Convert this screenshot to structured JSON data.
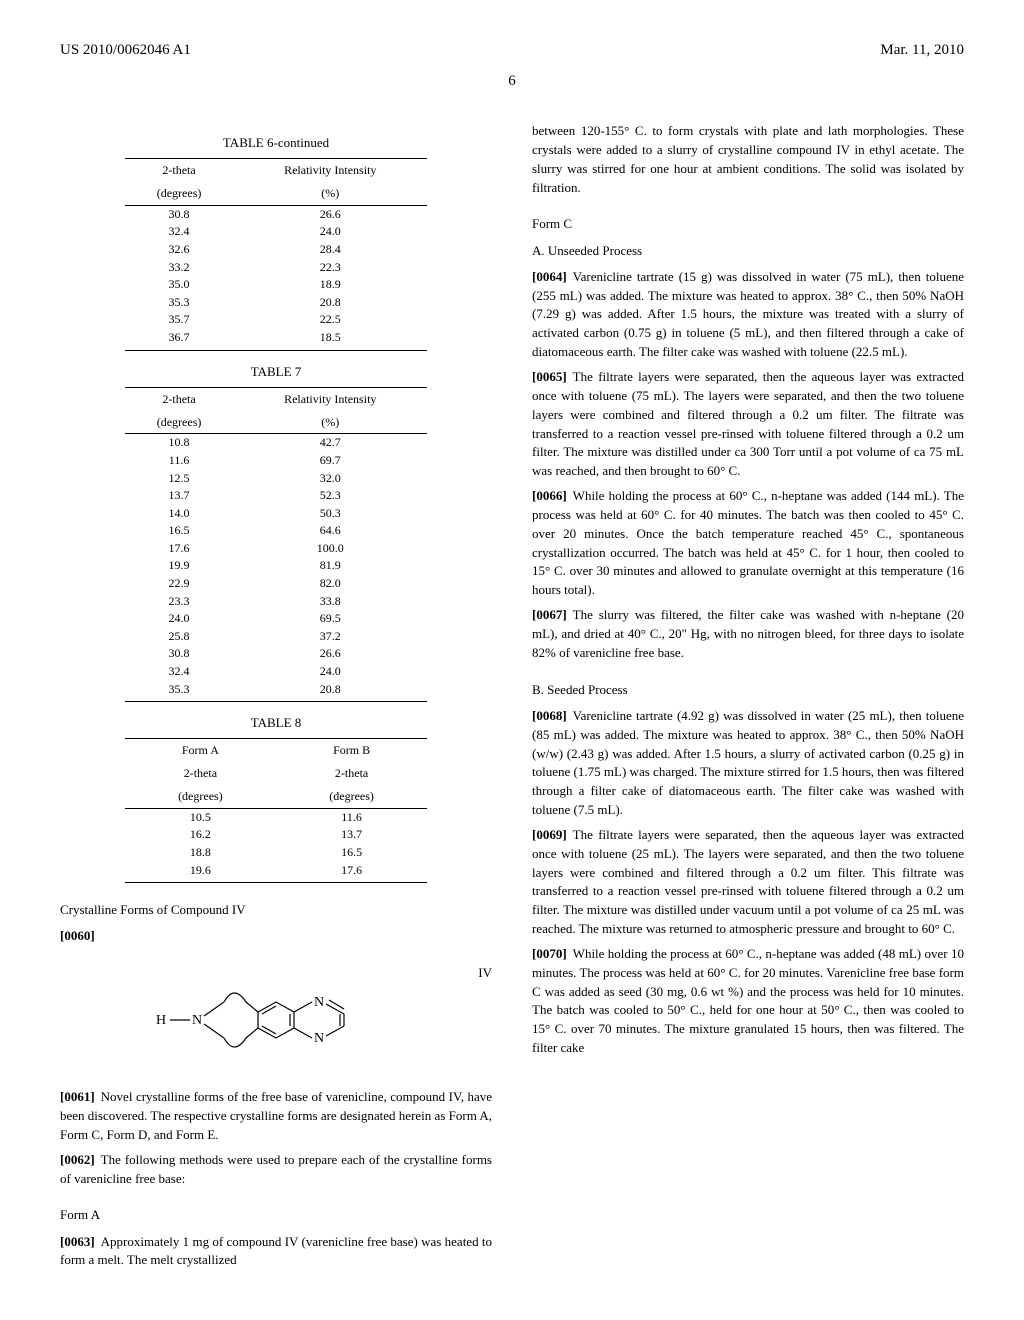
{
  "header": {
    "pub_number": "US 2010/0062046 A1",
    "pub_date": "Mar. 11, 2010",
    "page_number": "6"
  },
  "table6": {
    "title": "TABLE 6-continued",
    "col1_head1": "2-theta",
    "col1_head2": "(degrees)",
    "col2_head1": "Relativity Intensity",
    "col2_head2": "(%)",
    "rows": [
      [
        "30.8",
        "26.6"
      ],
      [
        "32.4",
        "24.0"
      ],
      [
        "32.6",
        "28.4"
      ],
      [
        "33.2",
        "22.3"
      ],
      [
        "35.0",
        "18.9"
      ],
      [
        "35.3",
        "20.8"
      ],
      [
        "35.7",
        "22.5"
      ],
      [
        "36.7",
        "18.5"
      ]
    ]
  },
  "table7": {
    "title": "TABLE 7",
    "col1_head1": "2-theta",
    "col1_head2": "(degrees)",
    "col2_head1": "Relativity Intensity",
    "col2_head2": "(%)",
    "rows": [
      [
        "10.8",
        "42.7"
      ],
      [
        "11.6",
        "69.7"
      ],
      [
        "12.5",
        "32.0"
      ],
      [
        "13.7",
        "52.3"
      ],
      [
        "14.0",
        "50.3"
      ],
      [
        "16.5",
        "64.6"
      ],
      [
        "17.6",
        "100.0"
      ],
      [
        "19.9",
        "81.9"
      ],
      [
        "22.9",
        "82.0"
      ],
      [
        "23.3",
        "33.8"
      ],
      [
        "24.0",
        "69.5"
      ],
      [
        "25.8",
        "37.2"
      ],
      [
        "30.8",
        "26.6"
      ],
      [
        "32.4",
        "24.0"
      ],
      [
        "35.3",
        "20.8"
      ]
    ]
  },
  "table8": {
    "title": "TABLE 8",
    "colA_head1": "Form A",
    "colA_head2": "2-theta",
    "colA_head3": "(degrees)",
    "colB_head1": "Form B",
    "colB_head2": "2-theta",
    "colB_head3": "(degrees)",
    "rows": [
      [
        "10.5",
        "11.6"
      ],
      [
        "16.2",
        "13.7"
      ],
      [
        "18.8",
        "16.5"
      ],
      [
        "19.6",
        "17.6"
      ]
    ]
  },
  "left": {
    "section1_title": "Crystalline Forms of Compound IV",
    "para60_num": "[0060]",
    "compound_label": "IV",
    "para61_num": "[0061]",
    "para61_text": "Novel crystalline forms of the free base of varenicline, compound IV, have been discovered. The respective crystalline forms are designated herein as Form A, Form C, Form D, and Form E.",
    "para62_num": "[0062]",
    "para62_text": "The following methods were used to prepare each of the crystalline forms of varenicline free base:",
    "formA_title": "Form A",
    "para63_num": "[0063]",
    "para63_text": "Approximately 1 mg of compound IV (varenicline free base) was heated to form a melt. The melt crystallized"
  },
  "right": {
    "intro_text": "between 120-155° C. to form crystals with plate and lath morphologies. These crystals were added to a slurry of crystalline compound IV in ethyl acetate. The slurry was stirred for one hour at ambient conditions. The solid was isolated by filtration.",
    "formC_title": "Form C",
    "unseeded_title": "A. Unseeded Process",
    "para64_num": "[0064]",
    "para64_text": "Varenicline tartrate (15 g) was dissolved in water (75 mL), then toluene (255 mL) was added. The mixture was heated to approx. 38° C., then 50% NaOH (7.29 g) was added. After 1.5 hours, the mixture was treated with a slurry of activated carbon (0.75 g) in toluene (5 mL), and then filtered through a cake of diatomaceous earth. The filter cake was washed with toluene (22.5 mL).",
    "para65_num": "[0065]",
    "para65_text": "The filtrate layers were separated, then the aqueous layer was extracted once with toluene (75 mL). The layers were separated, and then the two toluene layers were combined and filtered through a 0.2 um filter. The filtrate was transferred to a reaction vessel pre-rinsed with toluene filtered through a 0.2 um filter. The mixture was distilled under ca 300 Torr until a pot volume of ca 75 mL was reached, and then brought to 60° C.",
    "para66_num": "[0066]",
    "para66_text": "While holding the process at 60° C., n-heptane was added (144 mL). The process was held at 60° C. for 40 minutes. The batch was then cooled to 45° C. over 20 minutes. Once the batch temperature reached 45° C., spontaneous crystallization occurred. The batch was held at 45° C. for 1 hour, then cooled to 15° C. over 30 minutes and allowed to granulate overnight at this temperature (16 hours total).",
    "para67_num": "[0067]",
    "para67_text": "The slurry was filtered, the filter cake was washed with n-heptane (20 mL), and dried at 40° C., 20\" Hg, with no nitrogen bleed, for three days to isolate 82% of varenicline free base.",
    "seeded_title": "B. Seeded Process",
    "para68_num": "[0068]",
    "para68_text": "Varenicline tartrate (4.92 g) was dissolved in water (25 mL), then toluene (85 mL) was added. The mixture was heated to approx. 38° C., then 50% NaOH (w/w) (2.43 g) was added. After 1.5 hours, a slurry of activated carbon (0.25 g) in toluene (1.75 mL) was charged. The mixture stirred for 1.5 hours, then was filtered through a filter cake of diatomaceous earth. The filter cake was washed with toluene (7.5 mL).",
    "para69_num": "[0069]",
    "para69_text": "The filtrate layers were separated, then the aqueous layer was extracted once with toluene (25 mL). The layers were separated, and then the two toluene layers were combined and filtered through a 0.2 um filter. This filtrate was transferred to a reaction vessel pre-rinsed with toluene filtered through a 0.2 um filter. The mixture was distilled under vacuum until a pot volume of ca 25 mL was reached. The mixture was returned to atmospheric pressure and brought to 60° C.",
    "para70_num": "[0070]",
    "para70_text": "While holding the process at 60° C., n-heptane was added (48 mL) over 10 minutes. The process was held at 60° C. for 20 minutes. Varenicline free base form C was added as seed (30 mg, 0.6 wt %) and the process was held for 10 minutes. The batch was cooled to 50° C., held for one hour at 50° C., then was cooled to 15° C. over 70 minutes. The mixture granulated 15 hours, then was filtered. The filter cake"
  }
}
